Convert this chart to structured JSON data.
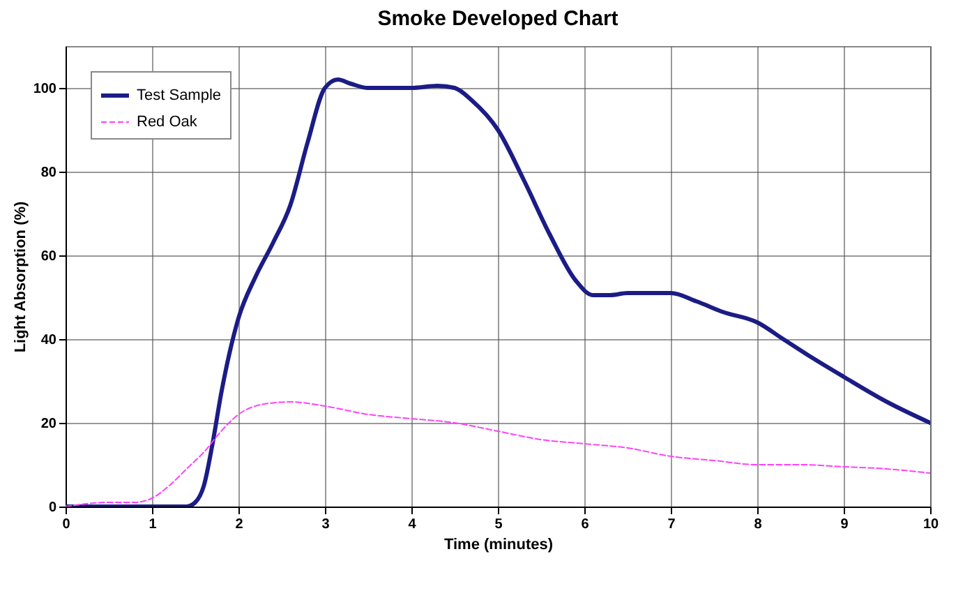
{
  "chart_data": {
    "type": "line",
    "title": "Smoke Developed Chart",
    "xlabel": "Time (minutes)",
    "ylabel": "Light Absorption (%)",
    "xlim": [
      0,
      10
    ],
    "xticks": [
      0,
      1,
      2,
      3,
      4,
      5,
      6,
      7,
      8,
      9,
      10
    ],
    "ylim": [
      0,
      110
    ],
    "yticks": [
      0,
      20,
      40,
      60,
      80,
      100
    ],
    "grid": true,
    "legend": "top left",
    "marker": "none",
    "series": [
      {
        "name": "Test Sample",
        "color": "#1c1c86",
        "line_style": "solid",
        "x": [
          0,
          0.5,
          1,
          1.4,
          1.5,
          1.6,
          1.7,
          1.8,
          1.9,
          2,
          2.2,
          2.4,
          2.6,
          2.8,
          3,
          3.15,
          3.3,
          3.5,
          4,
          4.3,
          4.5,
          4.7,
          5,
          5.3,
          5.6,
          5.9,
          6.1,
          6.3,
          6.5,
          7,
          7.3,
          7.6,
          8,
          8.3,
          8.6,
          9,
          9.5,
          10
        ],
        "values": [
          0,
          0,
          0,
          0,
          1,
          5,
          15,
          27,
          37,
          45,
          55,
          63,
          72,
          87,
          100,
          102,
          101,
          100,
          100,
          100.5,
          100,
          97,
          90,
          78,
          65,
          54,
          50.5,
          50.5,
          51,
          51,
          49,
          46.5,
          44,
          40,
          36,
          31,
          25,
          20
        ]
      },
      {
        "name": "Red Oak",
        "color": "#ff40ff",
        "line_style": "dashed",
        "x": [
          0,
          0.5,
          0.8,
          1,
          1.2,
          1.4,
          1.6,
          1.8,
          2,
          2.3,
          2.6,
          3,
          3.5,
          4,
          4.5,
          5,
          5.5,
          6,
          6.5,
          7,
          7.5,
          8,
          8.5,
          9,
          9.5,
          10
        ],
        "values": [
          0,
          1,
          1,
          2,
          5,
          9,
          13,
          18,
          22,
          24.5,
          25,
          24,
          22,
          21,
          20,
          18,
          16,
          15,
          14,
          12,
          11,
          10,
          10,
          9.5,
          9,
          8
        ]
      }
    ]
  }
}
